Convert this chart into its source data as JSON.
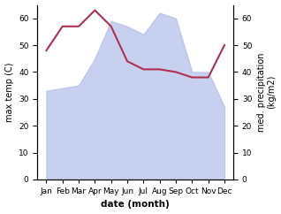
{
  "months": [
    "Jan",
    "Feb",
    "Mar",
    "Apr",
    "May",
    "Jun",
    "Jul",
    "Aug",
    "Sep",
    "Oct",
    "Nov",
    "Dec"
  ],
  "precipitation": [
    33,
    34,
    35,
    45,
    59,
    57,
    54,
    62,
    60,
    40,
    40,
    27
  ],
  "temperature": [
    48,
    57,
    57,
    63,
    57,
    44,
    41,
    41,
    40,
    38,
    38,
    50
  ],
  "precip_fill_color": "#b0bce8",
  "precip_line_color": "#b0bce8",
  "temp_color": "#b03050",
  "ylabel_left": "max temp (C)",
  "ylabel_right": "med. precipitation\n(kg/m2)",
  "xlabel": "date (month)",
  "ylim": [
    0,
    65
  ],
  "yticks": [
    0,
    10,
    20,
    30,
    40,
    50,
    60
  ],
  "fill_alpha": 0.7,
  "temp_linewidth": 1.5,
  "label_fontsize": 7,
  "tick_fontsize": 6.5,
  "xlabel_fontsize": 7.5
}
